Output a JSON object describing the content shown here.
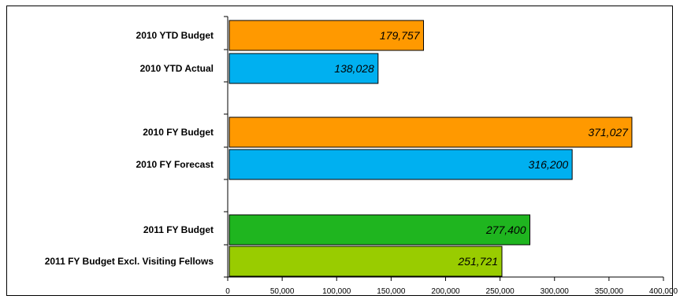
{
  "chart_data": {
    "type": "bar",
    "orientation": "horizontal",
    "categories": [
      "2010 YTD Budget",
      "2010 YTD Actual",
      "2010 FY Budget",
      "2010 FY Forecast",
      "2011 FY Budget",
      "2011 FY Budget Excl. Visiting Fellows"
    ],
    "values": [
      179757,
      138028,
      371027,
      316200,
      277400,
      251721
    ],
    "value_labels": [
      "179,757",
      "138,028",
      "371,027",
      "316,200",
      "277,400",
      "251,721"
    ],
    "colors": [
      "#FF9900",
      "#00B0F0",
      "#FF9900",
      "#00B0F0",
      "#1FB51F",
      "#99CC00"
    ],
    "xlim": [
      0,
      400000
    ],
    "x_ticks": [
      0,
      50000,
      100000,
      150000,
      200000,
      250000,
      300000,
      350000,
      400000
    ],
    "x_tick_labels": [
      "0",
      "50,000",
      "100,000",
      "150,000",
      "200,000",
      "250,000",
      "300,000",
      "350,000",
      "400,000"
    ],
    "grid": false,
    "legend": false
  }
}
